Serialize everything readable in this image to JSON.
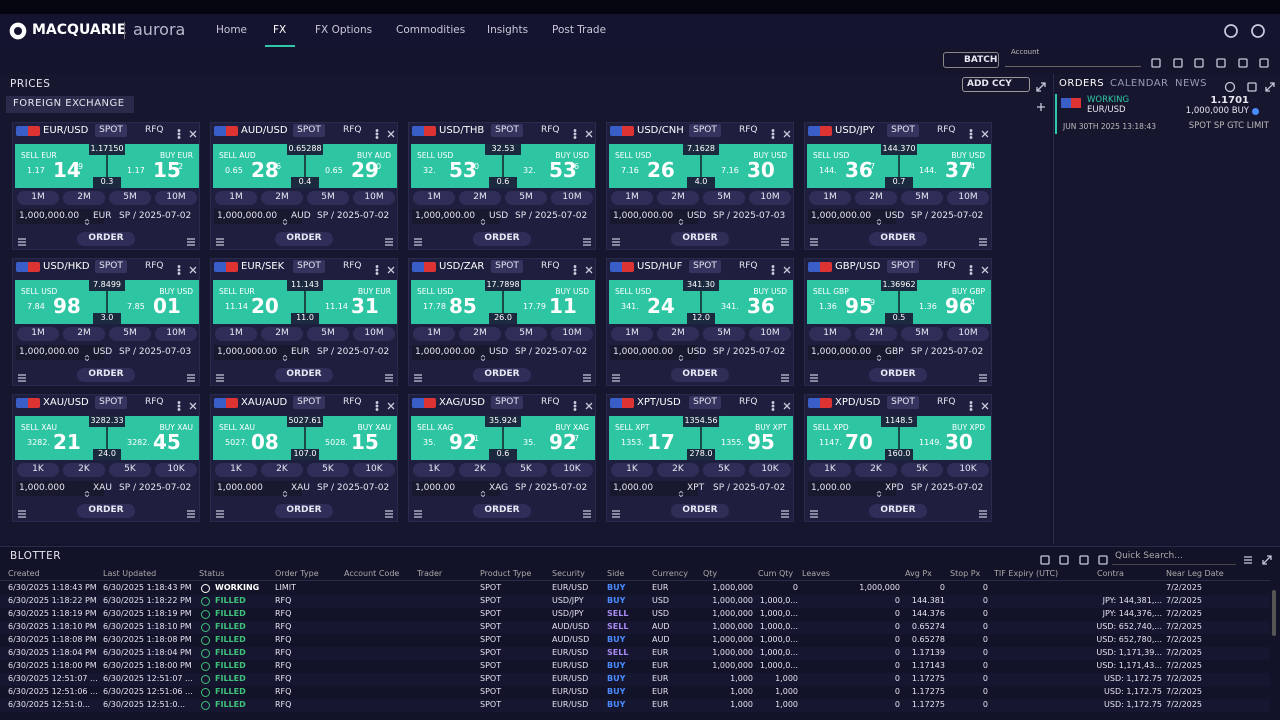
{
  "nav": {
    "brand": "MACQUARIE",
    "product": "aurora",
    "items": [
      "Home",
      "FX",
      "FX Options",
      "Commodities",
      "Insights",
      "Post Trade"
    ],
    "active": 1
  },
  "toolbar": {
    "batch": "BATCH",
    "account": "Account"
  },
  "prices": {
    "title": "PRICES",
    "add": "ADD CCY",
    "section": "FOREIGN EXCHANGE",
    "tiles": [
      {
        "pair": "EUR/USD",
        "tenor": "SPOT",
        "rfq": "RFQ",
        "sell": [
          "SELL EUR",
          "1.17",
          "14",
          "9"
        ],
        "mid": "1.17150",
        "spread": "0.3",
        "buy": [
          "BUY EUR",
          "1.17",
          "15",
          "2"
        ],
        "sizes": [
          "1M",
          "2M",
          "5M",
          "10M"
        ],
        "qty": "1,000,000.00",
        "ccy": "EUR",
        "settle": "SP / 2025-07-02",
        "order": "ORDER"
      },
      {
        "pair": "AUD/USD",
        "tenor": "SPOT",
        "rfq": "RFQ",
        "sell": [
          "SELL AUD",
          "0.65",
          "28",
          "6"
        ],
        "mid": "0.65288",
        "spread": "0.4",
        "buy": [
          "BUY AUD",
          "0.65",
          "29",
          "0"
        ],
        "sizes": [
          "1M",
          "2M",
          "5M",
          "10M"
        ],
        "qty": "1,000,000.00",
        "ccy": "AUD",
        "settle": "SP / 2025-07-02",
        "order": "ORDER"
      },
      {
        "pair": "USD/THB",
        "tenor": "SPOT",
        "rfq": "RFQ",
        "sell": [
          "SELL USD",
          "32.",
          "53",
          "0"
        ],
        "mid": "32.53",
        "spread": "0.6",
        "buy": [
          "BUY USD",
          "32.",
          "53",
          "6"
        ],
        "sizes": [
          "1M",
          "2M",
          "5M",
          "10M"
        ],
        "qty": "1,000,000.00",
        "ccy": "USD",
        "settle": "SP / 2025-07-02",
        "order": "ORDER"
      },
      {
        "pair": "USD/CNH",
        "tenor": "SPOT",
        "rfq": "RFQ",
        "sell": [
          "SELL USD",
          "7.16",
          "26"
        ],
        "mid": "7.1628",
        "spread": "4.0",
        "buy": [
          "BUY USD",
          "7.16",
          "30"
        ],
        "sizes": [
          "1M",
          "2M",
          "5M",
          "10M"
        ],
        "qty": "1,000,000.00",
        "ccy": "USD",
        "settle": "SP / 2025-07-03",
        "order": "ORDER"
      },
      {
        "pair": "USD/JPY",
        "tenor": "SPOT",
        "rfq": "RFQ",
        "sell": [
          "SELL USD",
          "144.",
          "36",
          "7"
        ],
        "mid": "144.370",
        "spread": "0.7",
        "buy": [
          "BUY USD",
          "144.",
          "37",
          "4"
        ],
        "sizes": [
          "1M",
          "2M",
          "5M",
          "10M"
        ],
        "qty": "1,000,000.00",
        "ccy": "USD",
        "settle": "SP / 2025-07-02",
        "order": "ORDER"
      },
      {
        "pair": "USD/HKD",
        "tenor": "SPOT",
        "rfq": "RFQ",
        "sell": [
          "SELL USD",
          "7.84",
          "98"
        ],
        "mid": "7.8499",
        "spread": "3.0",
        "buy": [
          "BUY USD",
          "7.85",
          "01"
        ],
        "sizes": [
          "1M",
          "2M",
          "5M",
          "10M"
        ],
        "qty": "1,000,000.00",
        "ccy": "USD",
        "settle": "SP / 2025-07-03",
        "order": "ORDER"
      },
      {
        "pair": "EUR/SEK",
        "tenor": "SPOT",
        "rfq": "RFQ",
        "sell": [
          "SELL EUR",
          "11.14",
          "20"
        ],
        "mid": "11.143",
        "spread": "11.0",
        "buy": [
          "BUY EUR",
          "11.14",
          "31"
        ],
        "sizes": [
          "1M",
          "2M",
          "5M",
          "10M"
        ],
        "qty": "1,000,000.00",
        "ccy": "EUR",
        "settle": "SP / 2025-07-02",
        "order": "ORDER"
      },
      {
        "pair": "USD/ZAR",
        "tenor": "SPOT",
        "rfq": "RFQ",
        "sell": [
          "SELL USD",
          "17.78",
          "85"
        ],
        "mid": "17.7898",
        "spread": "26.0",
        "buy": [
          "BUY USD",
          "17.79",
          "11"
        ],
        "sizes": [
          "1M",
          "2M",
          "5M",
          "10M"
        ],
        "qty": "1,000,000.00",
        "ccy": "USD",
        "settle": "SP / 2025-07-02",
        "order": "ORDER"
      },
      {
        "pair": "USD/HUF",
        "tenor": "SPOT",
        "rfq": "RFQ",
        "sell": [
          "SELL USD",
          "341.",
          "24"
        ],
        "mid": "341.30",
        "spread": "12.0",
        "buy": [
          "BUY USD",
          "341.",
          "36"
        ],
        "sizes": [
          "1M",
          "2M",
          "5M",
          "10M"
        ],
        "qty": "1,000,000.00",
        "ccy": "USD",
        "settle": "SP / 2025-07-02",
        "order": "ORDER"
      },
      {
        "pair": "GBP/USD",
        "tenor": "SPOT",
        "rfq": "RFQ",
        "sell": [
          "SELL GBP",
          "1.36",
          "95",
          "9"
        ],
        "mid": "1.36962",
        "spread": "0.5",
        "buy": [
          "BUY GBP",
          "1.36",
          "96",
          "4"
        ],
        "sizes": [
          "1M",
          "2M",
          "5M",
          "10M"
        ],
        "qty": "1,000,000.00",
        "ccy": "GBP",
        "settle": "SP / 2025-07-02",
        "order": "ORDER"
      },
      {
        "pair": "XAU/USD",
        "tenor": "SPOT",
        "rfq": "RFQ",
        "sell": [
          "SELL XAU",
          "3282.",
          "21"
        ],
        "mid": "3282.33",
        "spread": "24.0",
        "buy": [
          "BUY XAU",
          "3282.",
          "45"
        ],
        "sizes": [
          "1K",
          "2K",
          "5K",
          "10K"
        ],
        "qty": "1,000.000",
        "ccy": "XAU",
        "settle": "SP / 2025-07-02",
        "order": "ORDER"
      },
      {
        "pair": "XAU/AUD",
        "tenor": "SPOT",
        "rfq": "RFQ",
        "sell": [
          "SELL XAU",
          "5027.",
          "08"
        ],
        "mid": "5027.61",
        "spread": "107.0",
        "buy": [
          "BUY XAU",
          "5028.",
          "15"
        ],
        "sizes": [
          "1K",
          "2K",
          "5K",
          "10K"
        ],
        "qty": "1,000.000",
        "ccy": "XAU",
        "settle": "SP / 2025-07-02",
        "order": "ORDER"
      },
      {
        "pair": "XAG/USD",
        "tenor": "SPOT",
        "rfq": "RFQ",
        "sell": [
          "SELL XAG",
          "35.",
          "92",
          "1"
        ],
        "mid": "35.924",
        "spread": "0.6",
        "buy": [
          "BUY XAG",
          "35.",
          "92",
          "7"
        ],
        "sizes": [
          "1K",
          "2K",
          "5K",
          "10K"
        ],
        "qty": "1,000.00",
        "ccy": "XAG",
        "settle": "SP / 2025-07-02",
        "order": "ORDER"
      },
      {
        "pair": "XPT/USD",
        "tenor": "SPOT",
        "rfq": "RFQ",
        "sell": [
          "SELL XPT",
          "1353.",
          "17"
        ],
        "mid": "1354.56",
        "spread": "278.0",
        "buy": [
          "BUY XPT",
          "1355.",
          "95"
        ],
        "sizes": [
          "1K",
          "2K",
          "5K",
          "10K"
        ],
        "qty": "1,000.00",
        "ccy": "XPT",
        "settle": "SP / 2025-07-02",
        "order": "ORDER"
      },
      {
        "pair": "XPD/USD",
        "tenor": "SPOT",
        "rfq": "RFQ",
        "sell": [
          "SELL XPD",
          "1147.",
          "70"
        ],
        "mid": "1148.5",
        "spread": "160.0",
        "buy": [
          "BUY XPD",
          "1149.",
          "30"
        ],
        "sizes": [
          "1K",
          "2K",
          "5K",
          "10K"
        ],
        "qty": "1,000.00",
        "ccy": "XPD",
        "settle": "SP / 2025-07-02",
        "order": "ORDER"
      }
    ]
  },
  "orders": {
    "tabs": [
      "ORDERS",
      "CALENDAR",
      "NEWS"
    ],
    "items": [
      {
        "status": "WORKING",
        "pair": "EUR/USD",
        "price": "1.1701",
        "size": "1,000,000 BUY",
        "time": "JUN 30TH 2025 13:18:43",
        "details": "SPOT SP GTC LIMIT"
      }
    ]
  },
  "blotter": {
    "title": "BLOTTER",
    "search": "Quick Search...",
    "columns": [
      "Created",
      "Last Updated",
      "Status",
      "Order Type",
      "Account Code",
      "Trader",
      "Product Type",
      "Security",
      "Side",
      "Currency",
      "Qty",
      "Cum Qty",
      "Leaves",
      "Avg Px",
      "Stop Px",
      "TIF Expiry (UTC)",
      "Contra",
      "Near Leg Date"
    ],
    "rows": [
      [
        "6/30/2025 1:18:43 PM",
        "6/30/2025 1:18:43 PM",
        "WORKING",
        "LIMIT",
        null,
        null,
        "SPOT",
        "EUR/USD",
        "BUY",
        "EUR",
        "1,000,000",
        "0",
        "1,000,000",
        "0",
        "0",
        null,
        null,
        "7/2/2025"
      ],
      [
        "6/30/2025 1:18:22 PM",
        "6/30/2025 1:18:22 PM",
        "FILLED",
        "RFQ",
        null,
        null,
        "SPOT",
        "USD/JPY",
        "BUY",
        "USD",
        "1,000,000",
        "1,000,0...",
        "0",
        "144.381",
        "0",
        null,
        "JPY: 144,381,...",
        "7/2/2025"
      ],
      [
        "6/30/2025 1:18:19 PM",
        "6/30/2025 1:18:19 PM",
        "FILLED",
        "RFQ",
        null,
        null,
        "SPOT",
        "USD/JPY",
        "SELL",
        "USD",
        "1,000,000",
        "1,000,0...",
        "0",
        "144.376",
        "0",
        null,
        "JPY: 144,376,...",
        "7/2/2025"
      ],
      [
        "6/30/2025 1:18:10 PM",
        "6/30/2025 1:18:10 PM",
        "FILLED",
        "RFQ",
        null,
        null,
        "SPOT",
        "AUD/USD",
        "SELL",
        "AUD",
        "1,000,000",
        "1,000,0...",
        "0",
        "0.65274",
        "0",
        null,
        "USD: 652,740,...",
        "7/2/2025"
      ],
      [
        "6/30/2025 1:18:08 PM",
        "6/30/2025 1:18:08 PM",
        "FILLED",
        "RFQ",
        null,
        null,
        "SPOT",
        "AUD/USD",
        "BUY",
        "AUD",
        "1,000,000",
        "1,000,0...",
        "0",
        "0.65278",
        "0",
        null,
        "USD: 652,780,...",
        "7/2/2025"
      ],
      [
        "6/30/2025 1:18:04 PM",
        "6/30/2025 1:18:04 PM",
        "FILLED",
        "RFQ",
        null,
        null,
        "SPOT",
        "EUR/USD",
        "SELL",
        "EUR",
        "1,000,000",
        "1,000,0...",
        "0",
        "1.17139",
        "0",
        null,
        "USD: 1,171,39...",
        "7/2/2025"
      ],
      [
        "6/30/2025 1:18:00 PM",
        "6/30/2025 1:18:00 PM",
        "FILLED",
        "RFQ",
        null,
        null,
        "SPOT",
        "EUR/USD",
        "BUY",
        "EUR",
        "1,000,000",
        "1,000,0...",
        "0",
        "1.17143",
        "0",
        null,
        "USD: 1,171,43...",
        "7/2/2025"
      ],
      [
        "6/30/2025 12:51:07 ...",
        "6/30/2025 12:51:07 ...",
        "FILLED",
        "RFQ",
        null,
        null,
        "SPOT",
        "EUR/USD",
        "BUY",
        "EUR",
        "1,000",
        "1,000",
        "0",
        "1.17275",
        "0",
        null,
        "USD: 1,172.75",
        "7/2/2025"
      ],
      [
        "6/30/2025 12:51:06 ...",
        "6/30/2025 12:51:06 ...",
        "FILLED",
        "RFQ",
        null,
        null,
        "SPOT",
        "EUR/USD",
        "BUY",
        "EUR",
        "1,000",
        "1,000",
        "0",
        "1.17275",
        "0",
        null,
        "USD: 1,172.75",
        "7/2/2025"
      ],
      [
        "6/30/2025 12:51:0...",
        "6/30/2025 12:51:0...",
        "FILLED",
        "RFQ",
        null,
        null,
        "SPOT",
        "EUR/USD",
        "BUY",
        "EUR",
        "1,000",
        "1,000",
        "0",
        "1.17275",
        "0",
        null,
        "USD: 1,172.75",
        "7/2/2025"
      ]
    ]
  }
}
